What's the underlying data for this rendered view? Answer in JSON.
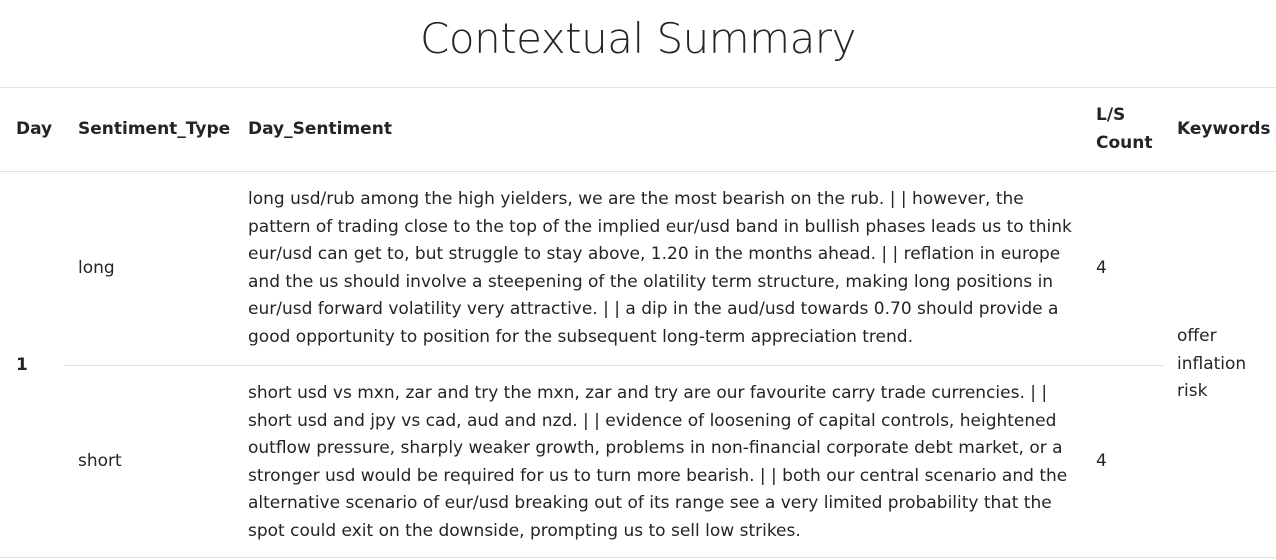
{
  "title": "Contextual Summary",
  "table": {
    "headers": {
      "day": "Day",
      "sentiment_type": "Sentiment_Type",
      "day_sentiment": "Day_Sentiment",
      "ls_count_line1": "L/S",
      "ls_count_line2": "Count",
      "keywords": "Keywords"
    },
    "day": "1",
    "rows": [
      {
        "sentiment_type": "long",
        "ls_count": "4",
        "lines": [
          "long usd/rub among the high yielders, we are the most bearish on the rub. | | however, the",
          "pattern of trading close to the top of the implied eur/usd band in bullish phases leads us to think",
          "eur/usd can get to, but struggle to stay above, 1.20 in the months ahead. | | reflation in europe",
          "and the us should involve a steepening of the olatility term structure, making long positions in",
          "eur/usd forward volatility very attractive. | | a dip in the aud/usd towards 0.70 should provide a",
          "good opportunity to position for the subsequent long-term appreciation trend."
        ]
      },
      {
        "sentiment_type": "short",
        "ls_count": "4",
        "lines": [
          "short usd vs mxn, zar and try the mxn, zar and try are our favourite carry trade currencies. | |",
          "short usd and jpy vs cad, aud and nzd. | | evidence of loosening of capital controls, heightened",
          "outflow pressure, sharply weaker growth, problems in non-financial corporate debt market, or a",
          "stronger usd would be required for us to turn more bearish. | | both our central scenario and the",
          "alternative scenario of eur/usd breaking out of its range see a very limited probability that the",
          "spot could exit on the downside, prompting us to sell low strikes."
        ]
      }
    ],
    "keywords": [
      "offer",
      "inflation",
      "risk"
    ]
  },
  "colors": {
    "long": "#228b22",
    "short": "#e0201c",
    "border": "#dee2e6",
    "text": "#212529"
  }
}
